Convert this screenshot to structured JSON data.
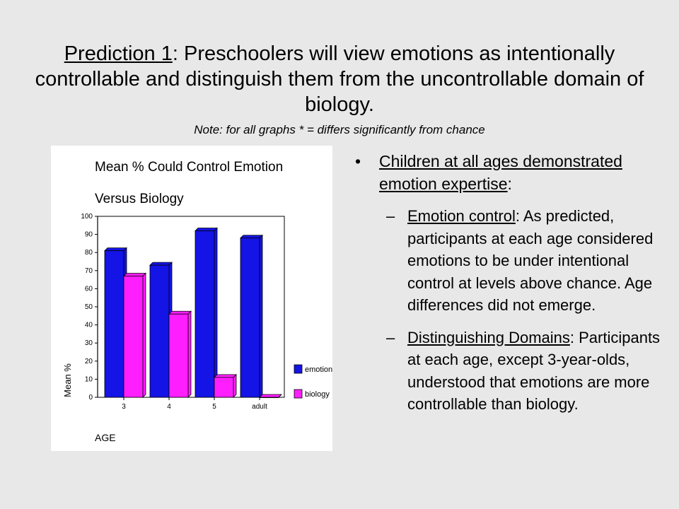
{
  "title": {
    "prefix": "Prediction 1",
    "rest": ": Preschoolers will view emotions as intentionally controllable and distinguish them from the uncontrollable domain of biology."
  },
  "note": "Note: for all graphs * = differs significantly from chance",
  "bullets": {
    "main_underlined": "Children at all ages demonstrated emotion expertise",
    "main_tail": ":",
    "sub": [
      {
        "dash": "–",
        "label": "Emotion control",
        "text": ": As predicted, participants at each age considered emotions to be under intentional control at levels above chance.  Age differences did not emerge."
      },
      {
        "dash": "–",
        "label": "Distinguishing Domains",
        "text": ": Participants at each age, except 3-year-olds, understood that emotions are more controllable than biology."
      }
    ]
  },
  "chart_data": {
    "type": "bar",
    "title": "Mean % Could Control Emotion",
    "subtitle": "Versus Biology",
    "xlabel": "AGE",
    "ylabel": "Mean %",
    "categories": [
      "3",
      "4",
      "5",
      "adult"
    ],
    "ylim": [
      0,
      100
    ],
    "yticks": [
      0,
      10,
      20,
      30,
      40,
      50,
      60,
      70,
      80,
      90,
      100
    ],
    "series": [
      {
        "name": "emotion",
        "color": "#1414e6",
        "values": [
          81,
          73,
          92,
          88
        ]
      },
      {
        "name": "biology",
        "color": "#ff1eff",
        "values": [
          67,
          46,
          11,
          0
        ]
      }
    ],
    "legend": "right",
    "grid": false
  }
}
